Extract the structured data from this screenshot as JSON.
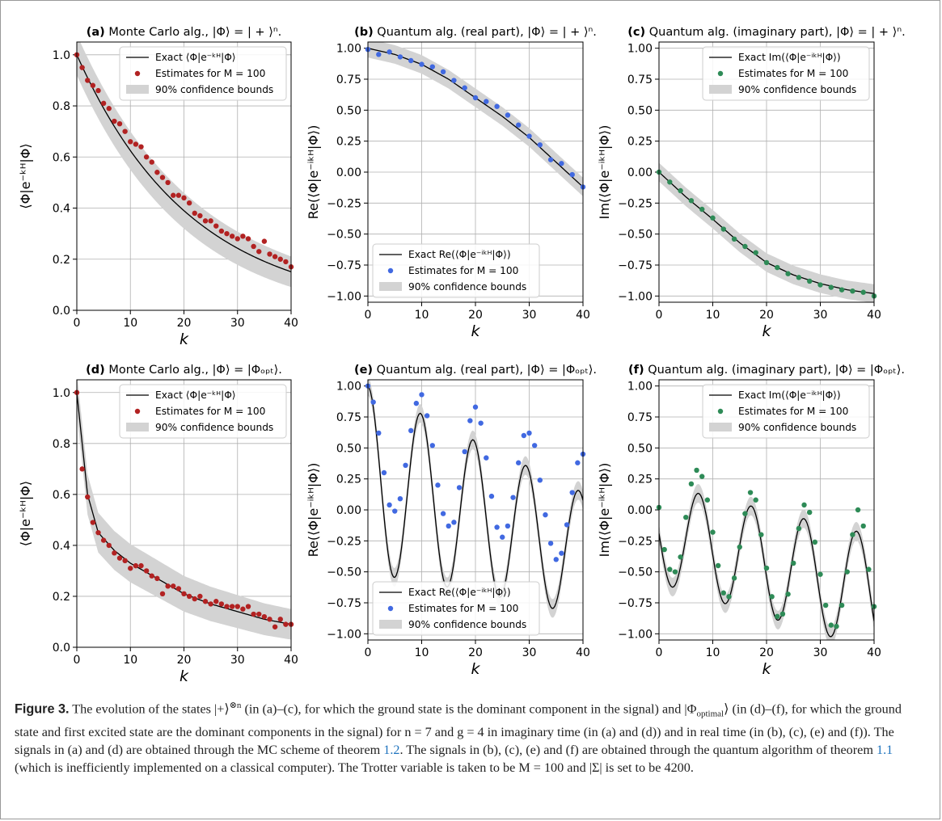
{
  "figure": {
    "panels": [
      {
        "id": "a",
        "title_bold": "(a)",
        "title_text": " Monte Carlo alg., |Φ⟩ = | + ⟩ⁿ.",
        "ylabel": "⟨Φ|e⁻ᵏᴴ|Φ⟩",
        "xlabel": "k",
        "legend": {
          "pos": "top-right",
          "exact": "Exact ⟨Φ|e⁻ᵏᴴ|Φ⟩",
          "est": "Estimates for M = 100",
          "conf": "90% confidence bounds"
        },
        "color": "#b22222",
        "yticks": [
          "0.0",
          "0.2",
          "0.4",
          "0.6",
          "0.8",
          "1.0"
        ],
        "ylim": [
          0,
          1.05
        ]
      },
      {
        "id": "b",
        "title_bold": "(b)",
        "title_text": " Quantum alg. (real part), |Φ⟩ = | + ⟩ⁿ.",
        "ylabel": "Re(⟨Φ|e⁻ⁱᵏᴴ|Φ⟩)",
        "xlabel": "k",
        "legend": {
          "pos": "bottom-left",
          "exact": "Exact Re(⟨Φ|e⁻ⁱᵏᴴ|Φ⟩)",
          "est": "Estimates for M = 100",
          "conf": "90% confidence bounds"
        },
        "color": "#4169e1",
        "yticks": [
          "−1.00",
          "−0.75",
          "−0.50",
          "−0.25",
          "0.00",
          "0.25",
          "0.50",
          "0.75",
          "1.00"
        ],
        "ylim": [
          -1.05,
          1.05
        ]
      },
      {
        "id": "c",
        "title_bold": "(c)",
        "title_text": " Quantum alg. (imaginary part), |Φ⟩ = | + ⟩ⁿ.",
        "ylabel": "Im(⟨Φ|e⁻ⁱᵏᴴ|Φ⟩)",
        "xlabel": "k",
        "legend": {
          "pos": "top-right",
          "exact": "Exact Im(⟨Φ|e⁻ⁱᵏᴴ|Φ⟩)",
          "est": "Estimates for M = 100",
          "conf": "90% confidence bounds"
        },
        "color": "#2e8b57",
        "yticks": [
          "−1.00",
          "−0.75",
          "−0.50",
          "−0.25",
          "0.00",
          "0.25",
          "0.50",
          "0.75",
          "1.00"
        ],
        "ylim": [
          -1.05,
          1.05
        ]
      },
      {
        "id": "d",
        "title_bold": "(d)",
        "title_text": " Monte Carlo alg., |Φ⟩ = |Φₒₚₜ⟩.",
        "ylabel": "⟨Φ|e⁻ᵏᴴ|Φ⟩",
        "xlabel": "k",
        "legend": {
          "pos": "top-right",
          "exact": "Exact ⟨Φ|e⁻ᵏᴴ|Φ⟩",
          "est": "Estimates for M = 100",
          "conf": "90% confidence bounds"
        },
        "color": "#b22222",
        "yticks": [
          "0.0",
          "0.2",
          "0.4",
          "0.6",
          "0.8",
          "1.0"
        ],
        "ylim": [
          0,
          1.05
        ]
      },
      {
        "id": "e",
        "title_bold": "(e)",
        "title_text": " Quantum alg. (real part), |Φ⟩ = |Φₒₚₜ⟩.",
        "ylabel": "Re(⟨Φ|e⁻ⁱᵏᴴ|Φ⟩)",
        "xlabel": "k",
        "legend": {
          "pos": "bottom-left",
          "exact": "Exact Re(⟨Φ|e⁻ⁱᵏᴴ|Φ⟩)",
          "est": "Estimates for M = 100",
          "conf": "90% confidence bounds"
        },
        "color": "#4169e1",
        "yticks": [
          "−1.00",
          "−0.75",
          "−0.50",
          "−0.25",
          "0.00",
          "0.25",
          "0.50",
          "0.75",
          "1.00"
        ],
        "ylim": [
          -1.05,
          1.05
        ]
      },
      {
        "id": "f",
        "title_bold": "(f)",
        "title_text": " Quantum alg. (imaginary part), |Φ⟩ = |Φₒₚₜ⟩.",
        "ylabel": "Im(⟨Φ|e⁻ⁱᵏᴴ|Φ⟩)",
        "xlabel": "k",
        "legend": {
          "pos": "top-right",
          "exact": "Exact Im(⟨Φ|e⁻ⁱᵏᴴ|Φ⟩)",
          "est": "Estimates for M = 100",
          "conf": "90% confidence bounds"
        },
        "color": "#2e8b57",
        "yticks": [
          "−1.00",
          "−0.75",
          "−0.50",
          "−0.25",
          "0.00",
          "0.25",
          "0.50",
          "0.75",
          "1.00"
        ],
        "ylim": [
          -1.05,
          1.05
        ]
      }
    ],
    "xticks": [
      "0",
      "10",
      "20",
      "30",
      "40"
    ]
  },
  "chart_data": [
    {
      "type": "line",
      "panel": "a",
      "x_range": [
        0,
        40
      ],
      "exact": [
        [
          0,
          1.0
        ],
        [
          5,
          0.8
        ],
        [
          10,
          0.65
        ],
        [
          15,
          0.54
        ],
        [
          20,
          0.45
        ],
        [
          25,
          0.37
        ],
        [
          30,
          0.3
        ],
        [
          35,
          0.24
        ],
        [
          40,
          0.18
        ]
      ],
      "estimates": [
        [
          0,
          1.0
        ],
        [
          1,
          0.95
        ],
        [
          2,
          0.9
        ],
        [
          3,
          0.88
        ],
        [
          4,
          0.86
        ],
        [
          5,
          0.81
        ],
        [
          6,
          0.79
        ],
        [
          7,
          0.74
        ],
        [
          8,
          0.73
        ],
        [
          9,
          0.7
        ],
        [
          10,
          0.66
        ],
        [
          11,
          0.65
        ],
        [
          12,
          0.64
        ],
        [
          13,
          0.6
        ],
        [
          14,
          0.58
        ],
        [
          15,
          0.54
        ],
        [
          16,
          0.52
        ],
        [
          17,
          0.5
        ],
        [
          18,
          0.45
        ],
        [
          19,
          0.45
        ],
        [
          20,
          0.44
        ],
        [
          21,
          0.42
        ],
        [
          22,
          0.38
        ],
        [
          23,
          0.37
        ],
        [
          24,
          0.35
        ],
        [
          25,
          0.35
        ],
        [
          26,
          0.33
        ],
        [
          27,
          0.31
        ],
        [
          28,
          0.3
        ],
        [
          29,
          0.29
        ],
        [
          30,
          0.28
        ],
        [
          31,
          0.29
        ],
        [
          32,
          0.28
        ],
        [
          33,
          0.25
        ],
        [
          34,
          0.23
        ],
        [
          35,
          0.27
        ],
        [
          36,
          0.22
        ],
        [
          37,
          0.21
        ],
        [
          38,
          0.2
        ],
        [
          39,
          0.19
        ],
        [
          40,
          0.17
        ]
      ]
    },
    {
      "type": "line",
      "panel": "b",
      "x_range": [
        0,
        40
      ],
      "exact": [
        [
          0,
          1.0
        ],
        [
          5,
          0.95
        ],
        [
          10,
          0.87
        ],
        [
          15,
          0.75
        ],
        [
          20,
          0.6
        ],
        [
          25,
          0.45
        ],
        [
          30,
          0.28
        ],
        [
          35,
          0.08
        ],
        [
          40,
          -0.12
        ]
      ],
      "estimates": [
        [
          0,
          0.99
        ],
        [
          2,
          0.95
        ],
        [
          4,
          0.97
        ],
        [
          6,
          0.93
        ],
        [
          8,
          0.9
        ],
        [
          10,
          0.87
        ],
        [
          12,
          0.85
        ],
        [
          14,
          0.81
        ],
        [
          16,
          0.74
        ],
        [
          18,
          0.68
        ],
        [
          20,
          0.6
        ],
        [
          22,
          0.57
        ],
        [
          24,
          0.53
        ],
        [
          26,
          0.46
        ],
        [
          28,
          0.38
        ],
        [
          30,
          0.29
        ],
        [
          32,
          0.22
        ],
        [
          34,
          0.1
        ],
        [
          36,
          0.07
        ],
        [
          38,
          -0.02
        ],
        [
          40,
          -0.12
        ]
      ]
    },
    {
      "type": "line",
      "panel": "c",
      "x_range": [
        0,
        40
      ],
      "exact": [
        [
          0,
          0.0
        ],
        [
          5,
          -0.2
        ],
        [
          10,
          -0.38
        ],
        [
          15,
          -0.57
        ],
        [
          20,
          -0.73
        ],
        [
          25,
          -0.83
        ],
        [
          30,
          -0.9
        ],
        [
          35,
          -0.95
        ],
        [
          40,
          -0.98
        ]
      ],
      "estimates": [
        [
          0,
          0.0
        ],
        [
          2,
          -0.08
        ],
        [
          4,
          -0.15
        ],
        [
          6,
          -0.23
        ],
        [
          8,
          -0.3
        ],
        [
          10,
          -0.37
        ],
        [
          12,
          -0.46
        ],
        [
          14,
          -0.54
        ],
        [
          16,
          -0.6
        ],
        [
          18,
          -0.65
        ],
        [
          20,
          -0.73
        ],
        [
          22,
          -0.77
        ],
        [
          24,
          -0.82
        ],
        [
          26,
          -0.85
        ],
        [
          28,
          -0.88
        ],
        [
          30,
          -0.91
        ],
        [
          32,
          -0.93
        ],
        [
          34,
          -0.95
        ],
        [
          36,
          -0.96
        ],
        [
          38,
          -0.97
        ],
        [
          40,
          -1.0
        ]
      ]
    },
    {
      "type": "line",
      "panel": "d",
      "x_range": [
        0,
        40
      ],
      "exact": [
        [
          0,
          1.0
        ],
        [
          2,
          0.6
        ],
        [
          4,
          0.45
        ],
        [
          7,
          0.38
        ],
        [
          10,
          0.33
        ],
        [
          15,
          0.27
        ],
        [
          20,
          0.21
        ],
        [
          25,
          0.17
        ],
        [
          30,
          0.14
        ],
        [
          35,
          0.11
        ],
        [
          40,
          0.09
        ]
      ],
      "estimates": [
        [
          0,
          1.0
        ],
        [
          1,
          0.7
        ],
        [
          2,
          0.59
        ],
        [
          3,
          0.49
        ],
        [
          4,
          0.45
        ],
        [
          5,
          0.42
        ],
        [
          6,
          0.4
        ],
        [
          7,
          0.37
        ],
        [
          8,
          0.35
        ],
        [
          9,
          0.34
        ],
        [
          10,
          0.31
        ],
        [
          11,
          0.32
        ],
        [
          12,
          0.32
        ],
        [
          13,
          0.3
        ],
        [
          14,
          0.28
        ],
        [
          15,
          0.27
        ],
        [
          16,
          0.21
        ],
        [
          17,
          0.24
        ],
        [
          18,
          0.24
        ],
        [
          19,
          0.23
        ],
        [
          20,
          0.21
        ],
        [
          21,
          0.2
        ],
        [
          22,
          0.19
        ],
        [
          23,
          0.2
        ],
        [
          24,
          0.18
        ],
        [
          25,
          0.17
        ],
        [
          26,
          0.18
        ],
        [
          27,
          0.17
        ],
        [
          28,
          0.16
        ],
        [
          29,
          0.16
        ],
        [
          30,
          0.16
        ],
        [
          31,
          0.15
        ],
        [
          32,
          0.16
        ],
        [
          33,
          0.13
        ],
        [
          34,
          0.13
        ],
        [
          35,
          0.12
        ],
        [
          36,
          0.11
        ],
        [
          37,
          0.08
        ],
        [
          38,
          0.11
        ],
        [
          39,
          0.09
        ],
        [
          40,
          0.09
        ]
      ]
    },
    {
      "type": "line",
      "panel": "e",
      "x_range": [
        0,
        40
      ],
      "exact_model": "0.245+0.755*cos(2*pi*k/9.8)*exp(-k/95)-0.015*k",
      "estimates": [
        [
          0,
          1.0
        ],
        [
          1,
          0.87
        ],
        [
          2,
          0.62
        ],
        [
          3,
          0.3
        ],
        [
          4,
          0.04
        ],
        [
          5,
          -0.01
        ],
        [
          6,
          0.09
        ],
        [
          7,
          0.36
        ],
        [
          8,
          0.64
        ],
        [
          9,
          0.86
        ],
        [
          10,
          0.93
        ],
        [
          11,
          0.76
        ],
        [
          12,
          0.52
        ],
        [
          13,
          0.2
        ],
        [
          14,
          -0.03
        ],
        [
          15,
          -0.13
        ],
        [
          16,
          -0.1
        ],
        [
          17,
          0.18
        ],
        [
          18,
          0.47
        ],
        [
          19,
          0.72
        ],
        [
          20,
          0.83
        ],
        [
          21,
          0.7
        ],
        [
          22,
          0.42
        ],
        [
          23,
          0.11
        ],
        [
          24,
          -0.14
        ],
        [
          25,
          -0.22
        ],
        [
          26,
          -0.13
        ],
        [
          27,
          0.1
        ],
        [
          28,
          0.38
        ],
        [
          29,
          0.6
        ],
        [
          30,
          0.62
        ],
        [
          31,
          0.52
        ],
        [
          32,
          0.24
        ],
        [
          33,
          -0.04
        ],
        [
          34,
          -0.27
        ],
        [
          35,
          -0.4
        ],
        [
          36,
          -0.35
        ],
        [
          37,
          -0.12
        ],
        [
          38,
          0.14
        ],
        [
          39,
          0.38
        ],
        [
          40,
          0.45
        ]
      ]
    },
    {
      "type": "line",
      "panel": "f",
      "x_range": [
        0,
        40
      ],
      "exact_model": "-0.4*sin(2*pi*k/9.8)*(1+0.004*k)-0.19-0.012*k",
      "estimates": [
        [
          0,
          0.02
        ],
        [
          1,
          -0.32
        ],
        [
          2,
          -0.48
        ],
        [
          3,
          -0.5
        ],
        [
          4,
          -0.38
        ],
        [
          5,
          -0.06
        ],
        [
          6,
          0.21
        ],
        [
          7,
          0.32
        ],
        [
          8,
          0.27
        ],
        [
          9,
          0.08
        ],
        [
          10,
          -0.18
        ],
        [
          11,
          -0.45
        ],
        [
          12,
          -0.67
        ],
        [
          13,
          -0.7
        ],
        [
          14,
          -0.55
        ],
        [
          15,
          -0.3
        ],
        [
          16,
          -0.03
        ],
        [
          17,
          0.14
        ],
        [
          18,
          0.08
        ],
        [
          19,
          -0.2
        ],
        [
          20,
          -0.47
        ],
        [
          21,
          -0.7
        ],
        [
          22,
          -0.86
        ],
        [
          23,
          -0.84
        ],
        [
          24,
          -0.68
        ],
        [
          25,
          -0.43
        ],
        [
          26,
          -0.15
        ],
        [
          27,
          0.04
        ],
        [
          28,
          -0.02
        ],
        [
          29,
          -0.26
        ],
        [
          30,
          -0.52
        ],
        [
          31,
          -0.77
        ],
        [
          32,
          -0.93
        ],
        [
          33,
          -0.94
        ],
        [
          34,
          -0.77
        ],
        [
          35,
          -0.5
        ],
        [
          36,
          -0.2
        ],
        [
          37,
          0.0
        ],
        [
          38,
          -0.13
        ],
        [
          39,
          -0.48
        ],
        [
          40,
          -0.78
        ]
      ]
    }
  ],
  "caption": {
    "label": "Figure 3.",
    "p1": " The evolution of the states |+⟩",
    "p1sup": "⊗n",
    "p2": " (in (a)–(c), for which the ground state is the dominant component in the signal) and |Φ",
    "p2sub": "optimal",
    "p3": "⟩ (in (d)–(f), for which the ground state and first excited state are the dominant components in the signal) for n = 7 and g = 4 in imaginary time (in (a) and (d)) and in real time (in (b), (c), (e) and (f)). The signals in (a) and (d) are obtained through the MC scheme of theorem ",
    "ref1": "1.2",
    "p4": ". The signals in (b), (c), (e) and (f) are obtained through the quantum algorithm of theorem ",
    "ref2": "1.1",
    "p5": " (which is inefficiently implemented on a classical computer). The Trotter variable is taken to be M = 100 and |Σ| is set to be 4200."
  }
}
